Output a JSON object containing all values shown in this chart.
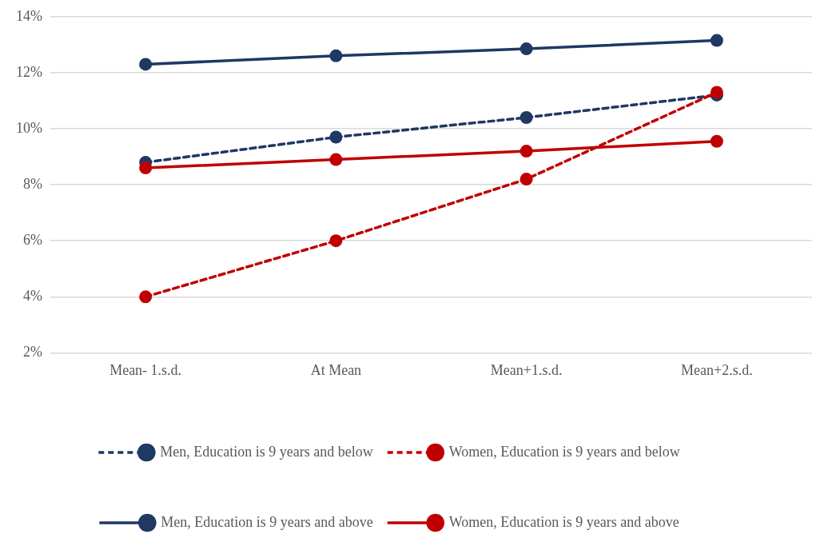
{
  "chart_data": {
    "type": "line",
    "categories": [
      "Mean- 1.s.d.",
      "At Mean",
      "Mean+1.s.d.",
      "Mean+2.s.d."
    ],
    "ylim": [
      2,
      14
    ],
    "yticks": [
      {
        "value": 2,
        "label": "2%"
      },
      {
        "value": 4,
        "label": "4%"
      },
      {
        "value": 6,
        "label": "6%"
      },
      {
        "value": 8,
        "label": "8%"
      },
      {
        "value": 10,
        "label": "10%"
      },
      {
        "value": 12,
        "label": "12%"
      },
      {
        "value": 14,
        "label": "14%"
      }
    ],
    "grid": "y",
    "legend": "bottom",
    "marker": "circle",
    "series": [
      {
        "name": "Men, Education is 9 years and below",
        "color": "#1f3864",
        "line_style": "dashed",
        "values": [
          8.8,
          9.7,
          10.4,
          11.2
        ]
      },
      {
        "name": "Women, Education is 9 years and below",
        "color": "#c00000",
        "line_style": "dashed",
        "values": [
          4.0,
          6.0,
          8.2,
          11.3
        ]
      },
      {
        "name": "Men, Education is 9 years and above",
        "color": "#1f3864",
        "line_style": "solid",
        "values": [
          12.3,
          12.6,
          12.85,
          13.15
        ]
      },
      {
        "name": "Women, Education is 9 years and above",
        "color": "#c00000",
        "line_style": "solid",
        "values": [
          8.6,
          8.9,
          9.2,
          9.55
        ]
      }
    ]
  }
}
